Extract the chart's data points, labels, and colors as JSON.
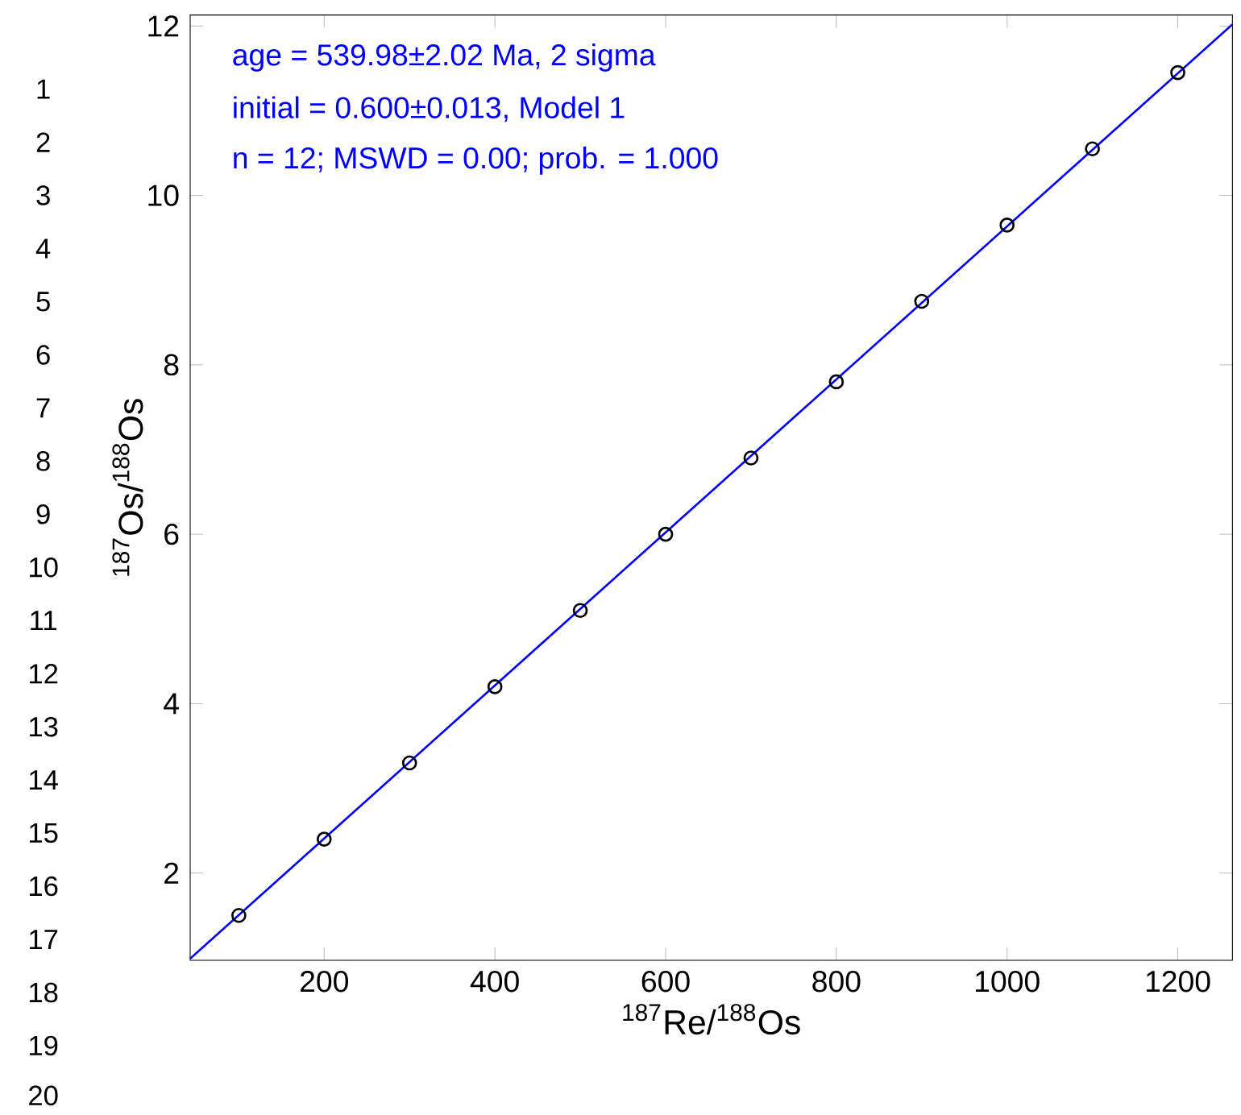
{
  "chart_data": {
    "type": "scatter",
    "xlabel": "$^{187}$Re/$^{188}$Os",
    "ylabel": "$^{187}$Os/$^{188}$Os",
    "xlim": [
      43,
      1264
    ],
    "ylim": [
      0.97,
      12.13
    ],
    "xticks": [
      200,
      400,
      600,
      800,
      1000,
      1200
    ],
    "yticks": [
      2,
      4,
      6,
      8,
      10,
      12
    ],
    "grid": false,
    "series": [
      {
        "marker": "circle",
        "color": "#000000",
        "x": [
          100,
          200,
          300,
          400,
          500,
          600,
          700,
          800,
          900,
          1000,
          1100,
          1200
        ],
        "values": [
          1.5,
          2.4,
          3.3,
          4.2,
          5.1,
          6.0,
          6.9,
          7.8,
          8.75,
          9.65,
          10.55,
          11.45
        ]
      },
      {
        "type": "line",
        "color": "#0000ff",
        "line_style": "solid",
        "x": [
          43,
          1264
        ],
        "values": [
          0.99,
          12.02
        ]
      }
    ],
    "annotations": [
      "age = 539.98±2.02 Ma, 2 sigma",
      "initial = 0.600±0.013, Model 1",
      "n = 12; MSWD = 0.00; prob. = 1.000",
      "1",
      "2",
      "3",
      "4",
      "5",
      "6",
      "7",
      "8",
      "9",
      "10",
      "11",
      "12",
      "13",
      "14",
      "15",
      "16",
      "17",
      "18",
      "19",
      "20"
    ]
  }
}
